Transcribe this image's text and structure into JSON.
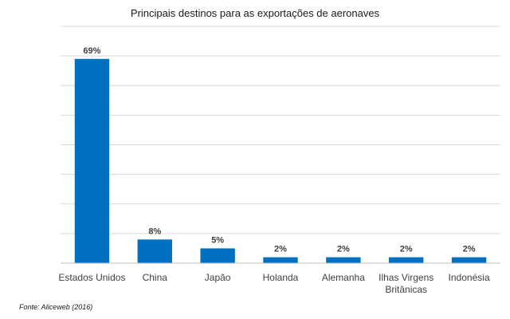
{
  "chart_data": {
    "type": "bar",
    "title": "Principais destinos para as exportações de aeronaves",
    "xlabel": "",
    "ylabel": "",
    "categories": [
      "Estados Unidos",
      "China",
      "Japão",
      "Holanda",
      "Alemanha",
      "Ilhas Virgens Britânicas",
      "Indonésia"
    ],
    "values": [
      69,
      8,
      5,
      2,
      2,
      2,
      2
    ],
    "data_labels": [
      "69%",
      "8%",
      "5%",
      "2%",
      "2%",
      "2%",
      "2%"
    ],
    "ylim": [
      0,
      80
    ],
    "y_grid_step": 10,
    "y_axis_tick_labels_shown": false,
    "grid": true,
    "legend": "none",
    "bar_color": "#0070c0",
    "source": "Fonte: Aliceweb (2016)"
  }
}
